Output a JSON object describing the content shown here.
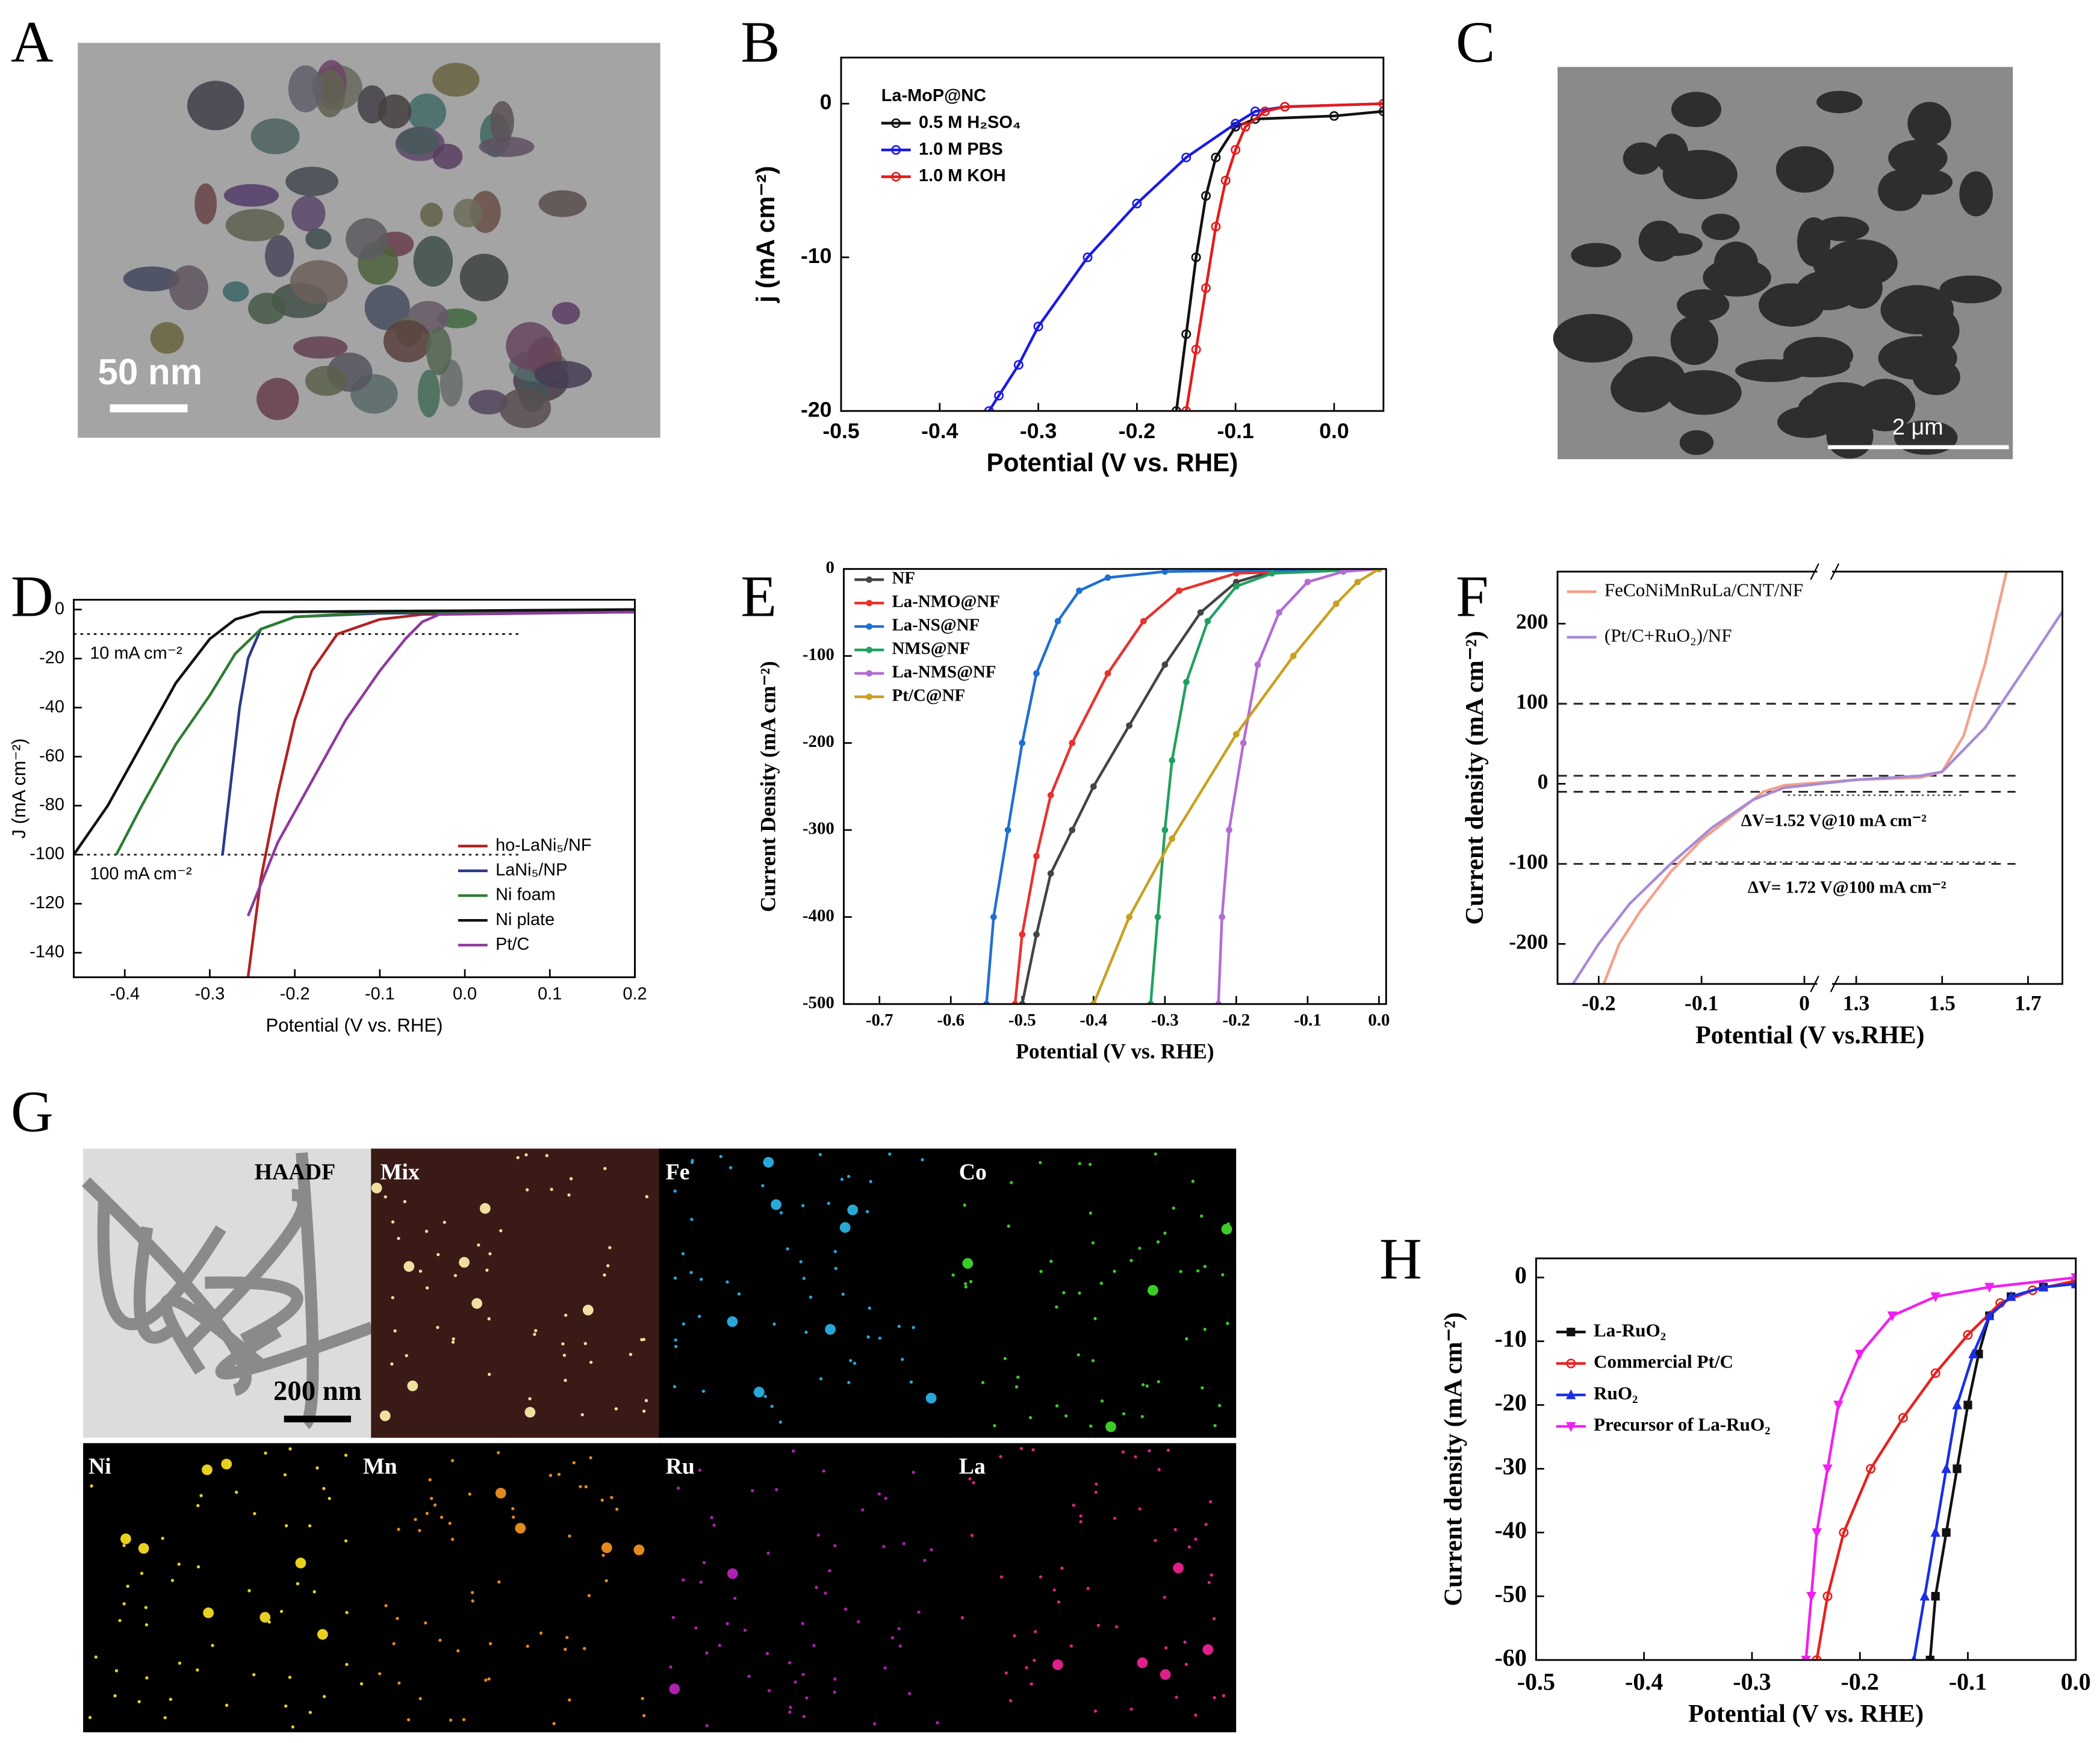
{
  "images": [
    {
      "label": "A",
      "scale_bar": "50 nm"
    },
    {
      "label": "C",
      "scale_bar": "2 μm"
    },
    {
      "label": "G",
      "tiles": [
        "HAADF",
        "Mix",
        "Fe",
        "Co",
        "Ni",
        "Mn",
        "Ru",
        "La"
      ],
      "scale_bar": "200 nm"
    }
  ],
  "chart_data": [
    {
      "type": "line",
      "label": "B",
      "xlabel": "Potential (V vs. RHE)",
      "ylabel": "j (mA cm⁻²)",
      "legend_title": "La-MoP@NC",
      "xlim": [
        -0.5,
        0.05
      ],
      "ylim": [
        -20,
        3
      ],
      "xticks": [
        -0.5,
        -0.4,
        -0.3,
        -0.2,
        -0.1,
        {
          "value": 0,
          "label": "0.0"
        }
      ],
      "yticks": [
        -20,
        -10,
        0
      ],
      "series": [
        {
          "name": "0.5 M H₂SO₄",
          "color": "#111111",
          "marker": "circle",
          "x": [
            -0.16,
            -0.15,
            -0.14,
            -0.13,
            -0.12,
            -0.1,
            -0.08,
            0,
            0.05
          ],
          "values": [
            -20,
            -15,
            -10,
            -6,
            -3.5,
            -1.5,
            -1,
            -0.8,
            -0.5
          ]
        },
        {
          "name": "1.0 M PBS",
          "color": "#1a1ae6",
          "marker": "circle",
          "x": [
            -0.35,
            -0.34,
            -0.32,
            -0.3,
            -0.25,
            -0.2,
            -0.15,
            -0.1,
            -0.08,
            -0.05,
            0.05
          ],
          "values": [
            -20,
            -19,
            -17,
            -14.5,
            -10,
            -6.5,
            -3.5,
            -1.3,
            -0.5,
            -0.2,
            0
          ]
        },
        {
          "name": "1.0 M KOH",
          "color": "#e61a1a",
          "marker": "circle",
          "x": [
            -0.15,
            -0.14,
            -0.13,
            -0.12,
            -0.11,
            -0.1,
            -0.09,
            -0.07,
            -0.05,
            0.05
          ],
          "values": [
            -20,
            -16,
            -12,
            -8,
            -5,
            -3,
            -1.5,
            -0.5,
            -0.2,
            0
          ]
        }
      ]
    },
    {
      "type": "line",
      "label": "D",
      "xlabel": "Potential (V vs. RHE)",
      "ylabel": "J (mA cm⁻²)",
      "xlim": [
        -0.46,
        0.2
      ],
      "ylim": [
        -150,
        4
      ],
      "xticks": [
        -0.4,
        -0.3,
        -0.2,
        -0.1,
        {
          "value": 0,
          "label": "0.0"
        },
        0.1,
        0.2
      ],
      "yticks": [
        0,
        -20,
        -40,
        -60,
        -80,
        -100,
        -120,
        -140
      ],
      "hlines": [
        {
          "value": -10,
          "label": "10 mA cm⁻²"
        },
        {
          "value": -100,
          "label": "100 mA cm⁻²"
        }
      ],
      "series": [
        {
          "name": "ho-LaNi₅/NF",
          "color": "#b22222",
          "x": [
            -0.255,
            -0.24,
            -0.22,
            -0.2,
            -0.18,
            -0.15,
            -0.1,
            -0.05,
            0.2
          ],
          "values": [
            -150,
            -110,
            -75,
            -45,
            -25,
            -10,
            -4,
            -2,
            -1
          ]
        },
        {
          "name": "LaNi₅/NP",
          "color": "#2a3a8a",
          "x": [
            -0.285,
            -0.275,
            -0.265,
            -0.255,
            -0.24,
            -0.2,
            -0.1,
            0.2
          ],
          "values": [
            -100,
            -70,
            -40,
            -20,
            -8,
            -3,
            -1.5,
            -1
          ]
        },
        {
          "name": "Ni foam",
          "color": "#2e7d32",
          "x": [
            -0.41,
            -0.38,
            -0.34,
            -0.3,
            -0.27,
            -0.24,
            -0.2,
            -0.1,
            0.2
          ],
          "values": [
            -100,
            -80,
            -55,
            -35,
            -18,
            -8,
            -3,
            -1,
            -0.5
          ]
        },
        {
          "name": "Ni plate",
          "color": "#111111",
          "x": [
            -0.46,
            -0.42,
            -0.38,
            -0.34,
            -0.3,
            -0.27,
            -0.24,
            0.2
          ],
          "values": [
            -100,
            -80,
            -55,
            -30,
            -12,
            -4,
            -1,
            0
          ]
        },
        {
          "name": "Pt/C",
          "color": "#8e3a9d",
          "x": [
            -0.255,
            -0.22,
            -0.18,
            -0.14,
            -0.1,
            -0.07,
            -0.05,
            -0.03,
            0.2
          ],
          "values": [
            -125,
            -95,
            -70,
            -45,
            -25,
            -12,
            -5,
            -2,
            -1
          ]
        }
      ]
    },
    {
      "type": "line",
      "label": "E",
      "xlabel": "Potential (V vs. RHE)",
      "ylabel": "Current Density (mA cm⁻²)",
      "xlim": [
        -0.75,
        0.01
      ],
      "ylim": [
        -500,
        0
      ],
      "xticks": [
        -0.7,
        -0.6,
        -0.5,
        -0.4,
        -0.3,
        -0.2,
        -0.1,
        {
          "value": 0,
          "label": "0.0"
        }
      ],
      "yticks": [
        0,
        -100,
        -200,
        -300,
        -400,
        -500
      ],
      "series": [
        {
          "name": "NF",
          "color": "#444444",
          "marker": "dot",
          "x": [
            -0.5,
            -0.48,
            -0.46,
            -0.43,
            -0.4,
            -0.35,
            -0.3,
            -0.25,
            -0.2,
            -0.15,
            0
          ],
          "values": [
            -500,
            -420,
            -350,
            -300,
            -250,
            -180,
            -110,
            -50,
            -15,
            -3,
            0
          ]
        },
        {
          "name": "La-NMO@NF",
          "color": "#e8322e",
          "marker": "dot",
          "x": [
            -0.51,
            -0.5,
            -0.48,
            -0.46,
            -0.43,
            -0.38,
            -0.33,
            -0.28,
            -0.2,
            0
          ],
          "values": [
            -500,
            -420,
            -330,
            -260,
            -200,
            -120,
            -60,
            -25,
            -5,
            0
          ]
        },
        {
          "name": "La-NS@NF",
          "color": "#1f6fd1",
          "marker": "dot",
          "x": [
            -0.55,
            -0.54,
            -0.52,
            -0.5,
            -0.48,
            -0.45,
            -0.42,
            -0.38,
            -0.3,
            0
          ],
          "values": [
            -500,
            -400,
            -300,
            -200,
            -120,
            -60,
            -25,
            -10,
            -3,
            0
          ]
        },
        {
          "name": "NMS@NF",
          "color": "#22a060",
          "marker": "dot",
          "x": [
            -0.32,
            -0.31,
            -0.3,
            -0.29,
            -0.27,
            -0.24,
            -0.2,
            -0.15,
            0
          ],
          "values": [
            -500,
            -400,
            -300,
            -220,
            -130,
            -60,
            -20,
            -5,
            0
          ]
        },
        {
          "name": "La-NMS@NF",
          "color": "#b36bd6",
          "marker": "dot",
          "x": [
            -0.225,
            -0.22,
            -0.21,
            -0.19,
            -0.17,
            -0.14,
            -0.1,
            -0.05,
            0
          ],
          "values": [
            -500,
            -400,
            -300,
            -200,
            -110,
            -50,
            -15,
            -3,
            0
          ]
        },
        {
          "name": "Pt/C@NF",
          "color": "#c9a020",
          "marker": "dot",
          "x": [
            -0.4,
            -0.35,
            -0.29,
            -0.2,
            -0.12,
            -0.06,
            -0.03,
            0
          ],
          "values": [
            -500,
            -400,
            -310,
            -190,
            -100,
            -40,
            -15,
            0
          ]
        }
      ]
    },
    {
      "type": "line",
      "label": "F",
      "xlabel": "Potential (V vs.RHE)",
      "ylabel": "Current density (mA cm⁻²)",
      "xlim": [
        -0.24,
        1.78
      ],
      "xbreak": [
        0.01,
        1.25
      ],
      "ylim": [
        -250,
        265
      ],
      "xticks": [
        -0.2,
        -0.1,
        0,
        1.3,
        1.5,
        1.7
      ],
      "yticks": [
        200,
        100,
        0,
        -100,
        -200
      ],
      "hlines": [
        100,
        10,
        -10,
        -100
      ],
      "annotations": [
        "ΔV=1.52 V@10 mA cm⁻²",
        "ΔV= 1.72 V@100 mA cm⁻²"
      ],
      "series": [
        {
          "name": "FeCoNiMnRuLa/CNT/NF",
          "color": "#f4a08a",
          "x": [
            -0.195,
            -0.18,
            -0.16,
            -0.13,
            -0.1,
            -0.07,
            -0.04,
            -0.02,
            1.3,
            1.45,
            1.5,
            1.55,
            1.6,
            1.65
          ],
          "values": [
            -250,
            -200,
            -160,
            -110,
            -70,
            -40,
            -10,
            -2,
            5,
            8,
            15,
            60,
            150,
            265
          ]
        },
        {
          "name": "(Pt/C+RuO₂)/NF",
          "color": "#a78bd6",
          "x": [
            -0.225,
            -0.2,
            -0.17,
            -0.13,
            -0.09,
            -0.05,
            -0.02,
            1.3,
            1.45,
            1.5,
            1.6,
            1.7,
            1.78
          ],
          "values": [
            -250,
            -200,
            -150,
            -100,
            -55,
            -20,
            -5,
            5,
            10,
            15,
            70,
            150,
            215
          ]
        }
      ]
    },
    {
      "type": "line",
      "label": "H",
      "xlabel": "Potential (V vs. RHE)",
      "ylabel": "Current density (mA cm⁻²)",
      "xlim": [
        -0.5,
        0
      ],
      "ylim": [
        -60,
        3
      ],
      "xticks": [
        -0.5,
        -0.4,
        -0.3,
        -0.2,
        -0.1,
        {
          "value": 0,
          "label": "0.0"
        }
      ],
      "yticks": [
        0,
        -10,
        -20,
        -30,
        -40,
        -50,
        -60
      ],
      "series": [
        {
          "name": "La-RuO₂",
          "color": "#111111",
          "marker": "square",
          "x": [
            -0.135,
            -0.13,
            -0.12,
            -0.11,
            -0.1,
            -0.09,
            -0.08,
            -0.06,
            -0.03,
            0
          ],
          "values": [
            -60,
            -50,
            -40,
            -30,
            -20,
            -12,
            -6,
            -3,
            -1.5,
            -1
          ]
        },
        {
          "name": "Commercial Pt/C",
          "color": "#e8201e",
          "marker": "circle",
          "x": [
            -0.24,
            -0.23,
            -0.215,
            -0.19,
            -0.16,
            -0.13,
            -0.1,
            -0.07,
            -0.04,
            0
          ],
          "values": [
            -60,
            -50,
            -40,
            -30,
            -22,
            -15,
            -9,
            -4,
            -2,
            -0.5
          ]
        },
        {
          "name": "RuO₂",
          "color": "#1a2ee6",
          "marker": "triangle",
          "x": [
            -0.15,
            -0.14,
            -0.13,
            -0.12,
            -0.11,
            -0.095,
            -0.08,
            -0.06,
            -0.03,
            0
          ],
          "values": [
            -60,
            -50,
            -40,
            -30,
            -20,
            -12,
            -6,
            -3,
            -1.5,
            -1
          ]
        },
        {
          "name": "Precursor of La-RuO₂",
          "color": "#f020f0",
          "marker": "down",
          "x": [
            -0.25,
            -0.245,
            -0.24,
            -0.23,
            -0.22,
            -0.2,
            -0.17,
            -0.13,
            -0.08,
            0
          ],
          "values": [
            -60,
            -50,
            -40,
            -30,
            -20,
            -12,
            -6,
            -3,
            -1.5,
            0
          ]
        }
      ]
    }
  ]
}
